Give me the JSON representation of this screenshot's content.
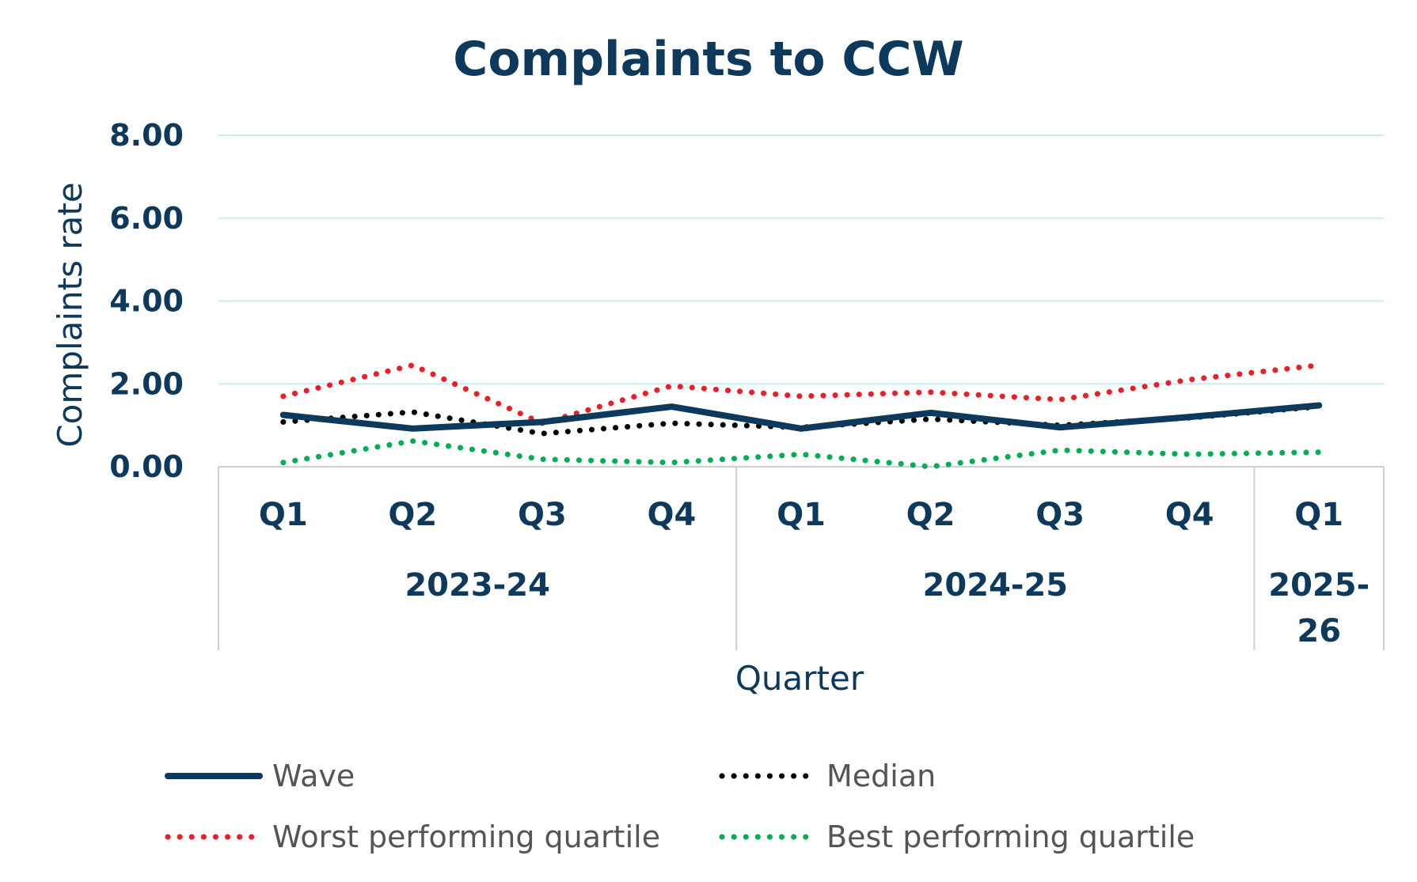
{
  "chart_data": {
    "type": "line",
    "title": "Complaints to CCW",
    "xlabel": "Quarter",
    "ylabel": "Complaints rate",
    "ylim": [
      0,
      8
    ],
    "yticks": [
      "0.00",
      "2.00",
      "4.00",
      "6.00",
      "8.00"
    ],
    "grid": true,
    "legend_position": "bottom",
    "categories": [
      "Q1",
      "Q2",
      "Q3",
      "Q4",
      "Q1",
      "Q2",
      "Q3",
      "Q4",
      "Q1"
    ],
    "groups": [
      {
        "label": "2023-24",
        "span": 4
      },
      {
        "label": "2024-25",
        "span": 4
      },
      {
        "label": "2025-26",
        "span": 1
      }
    ],
    "series": [
      {
        "name": "Wave",
        "style": "solid",
        "color": "#0d3a5c",
        "values": [
          1.25,
          0.92,
          1.08,
          1.45,
          0.92,
          1.3,
          0.95,
          1.2,
          1.48
        ]
      },
      {
        "name": "Median",
        "style": "dotted",
        "color": "#000000",
        "values": [
          1.08,
          1.32,
          0.8,
          1.05,
          0.95,
          1.15,
          1.0,
          1.18,
          1.45
        ]
      },
      {
        "name": "Worst performing quartile",
        "style": "dotted",
        "color": "#ee1c25",
        "values": [
          1.7,
          2.45,
          1.05,
          1.95,
          1.7,
          1.8,
          1.62,
          2.1,
          2.45
        ]
      },
      {
        "name": "Best performing quartile",
        "style": "dotted",
        "color": "#00b050",
        "values": [
          0.1,
          0.62,
          0.18,
          0.1,
          0.3,
          0.0,
          0.4,
          0.3,
          0.35
        ]
      }
    ]
  }
}
